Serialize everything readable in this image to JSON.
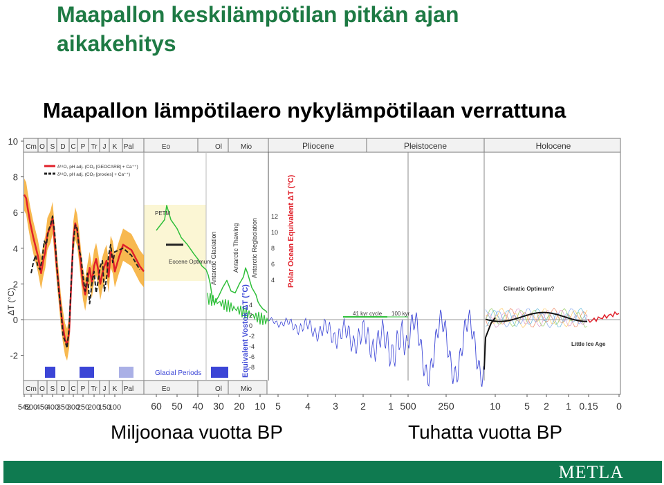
{
  "slide": {
    "title_line1": "Maapallon keskilämpötilan pitkän ajan",
    "title_line2": "aikakehitys",
    "subtitle": "Maapallon lämpötilaero nykylämpötilaan verrattuna",
    "xcap_left": "Miljoonaa vuotta BP",
    "xcap_right": "Tuhatta vuotta BP",
    "logo": "METLA"
  },
  "colors": {
    "title": "#1e7a44",
    "footer": "#0f7a50",
    "red": "#e0202a",
    "orange": "#f5a623",
    "green": "#2fbf3a",
    "blue": "#3b45d6"
  },
  "chart_data": {
    "type": "line",
    "ylabel": "ΔT (°C)",
    "ylim": [
      -3,
      10
    ],
    "yticks": [
      10,
      8,
      6,
      4,
      2,
      0,
      -2
    ],
    "ytick_labels": [
      "10",
      "8",
      "6",
      "4",
      "2",
      "0",
      "-2"
    ],
    "periods_top": [
      "Cm",
      "O",
      "S",
      "D",
      "C",
      "P",
      "Tr",
      "J",
      "K",
      "Pal",
      "Eo",
      "Ol",
      "Mio",
      "Pliocene",
      "Pleistocene",
      "Holocene"
    ],
    "periods_bottom": [
      "Cm",
      "O",
      "S",
      "D",
      "C",
      "P",
      "Tr",
      "J",
      "K",
      "Pal",
      "Eo",
      "Ol",
      "Mio"
    ],
    "xticks_myr": [
      "542",
      "500",
      "450",
      "400",
      "350",
      "300",
      "250",
      "200",
      "150",
      "100",
      "60",
      "50",
      "40",
      "30",
      "20",
      "10",
      "5",
      "4",
      "3",
      "2",
      "1"
    ],
    "xticks_kyr": [
      "500",
      "250",
      "10",
      "5",
      "2",
      "1",
      "0.15",
      "0"
    ],
    "legend": [
      "δ¹⁸O, pH adj. (CO₂ [GEOCARB] + Ca⁺⁺)",
      "δ¹⁸O, pH adj. (CO₂ [proxies] + Ca⁺⁺)"
    ],
    "annotations": [
      "PETM",
      "Eocene Optimum",
      "Antarctic Glaciation",
      "Antarctic Thawing",
      "Antarctic Reglaciation",
      "Polar Ocean Equivalent ΔT (°C)",
      "Equivalent Vostok ΔT (°C)",
      "Glacial Periods",
      "41 kyr cycle",
      "100 kyr",
      "Climatic Optimum?",
      "Little Ice Age"
    ],
    "polar_ticks": [
      "12",
      "10",
      "8",
      "6",
      "4"
    ],
    "vostok_ticks": [
      "4",
      "2",
      "0",
      "-2",
      "-4",
      "-6",
      "-8"
    ],
    "series": [
      {
        "name": "δ¹⁸O, pH adj. (CO₂ [GEOCARB] + Ca⁺⁺)",
        "x": [
          542,
          530,
          520,
          505,
          490,
          470,
          455,
          445,
          435,
          425,
          410,
          400,
          390,
          380,
          370,
          360,
          350,
          340,
          330,
          320,
          310,
          300,
          290,
          280,
          270,
          260,
          250,
          240,
          230,
          220,
          210,
          200,
          190,
          180,
          170,
          160,
          150,
          140,
          130,
          120,
          110,
          100,
          95,
          90,
          80,
          70,
          65
        ],
        "y": [
          7.0,
          6.8,
          6.2,
          5.4,
          4.6,
          3.6,
          2.6,
          3.3,
          3.8,
          4.8,
          5.2,
          5.7,
          4.4,
          3.0,
          1.8,
          0.5,
          -0.4,
          -1.1,
          -1.4,
          -0.7,
          2.0,
          4.6,
          5.4,
          5.0,
          4.1,
          3.0,
          2.0,
          1.4,
          2.2,
          2.9,
          2.1,
          3.0,
          3.4,
          2.8,
          2.0,
          2.6,
          3.0,
          3.3,
          2.4,
          3.8,
          3.5,
          2.7,
          3.5,
          4.2,
          3.9,
          3.0,
          2.7
        ]
      },
      {
        "name": "δ¹⁸O, pH adj. (CO₂ [proxies] + Ca⁺⁺)",
        "x": [
          500,
          490,
          480,
          470,
          460,
          450,
          440,
          430,
          420,
          410,
          400,
          390,
          380,
          370,
          360,
          350,
          340,
          330,
          320,
          310,
          300,
          290,
          280,
          270,
          260,
          250,
          240,
          230,
          220,
          210,
          200,
          190,
          180,
          170,
          160,
          150,
          140,
          130,
          120,
          110,
          100,
          90,
          80,
          70
        ],
        "y": [
          2.6,
          3.2,
          3.6,
          3.0,
          2.8,
          3.4,
          4.4,
          4.2,
          5.0,
          5.3,
          5.8,
          4.9,
          3.1,
          1.6,
          0.6,
          -0.9,
          -1.2,
          -1.6,
          -0.4,
          2.2,
          4.3,
          5.3,
          5.1,
          3.9,
          3.5,
          2.4,
          1.6,
          2.6,
          0.9,
          2.0,
          2.7,
          1.5,
          2.2,
          3.0,
          3.3,
          1.6,
          2.3,
          3.6,
          4.2,
          3.2,
          3.8,
          4.0,
          3.6,
          2.8
        ]
      },
      {
        "name": "",
        "x": [
          60,
          56,
          55,
          53,
          50,
          48,
          45,
          42,
          40,
          38,
          36,
          35,
          34,
          33,
          32,
          31,
          30,
          28,
          26,
          25,
          24,
          22,
          20,
          18,
          17,
          16,
          15,
          14,
          12,
          11,
          10,
          8,
          6,
          5
        ],
        "y": [
          5.0,
          5.6,
          6.4,
          5.6,
          5.1,
          4.6,
          4.2,
          3.7,
          3.4,
          3.0,
          2.8,
          2.5,
          2.0,
          1.2,
          0.9,
          1.1,
          1.3,
          1.8,
          2.2,
          1.9,
          1.6,
          1.5,
          2.0,
          2.4,
          2.9,
          2.6,
          2.2,
          1.8,
          1.4,
          1.0,
          0.8,
          0.6,
          0.5,
          0.4
        ]
      }
    ]
  }
}
